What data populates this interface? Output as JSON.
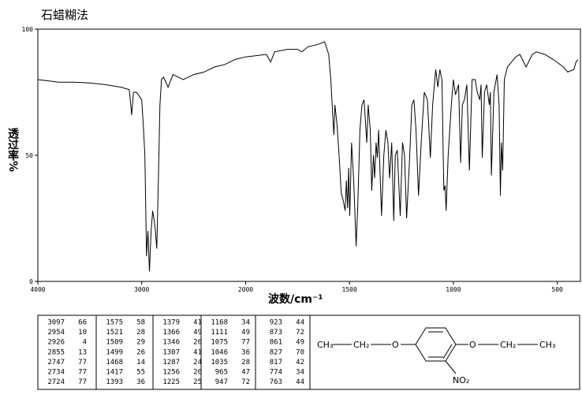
{
  "chart_data": {
    "type": "line",
    "title": "石蜡糊法",
    "xlabel": "波数/cm⁻¹",
    "ylabel": "透过率%",
    "xlim": [
      4000,
      400
    ],
    "ylim": [
      0,
      100
    ],
    "xticks": [
      4000,
      3000,
      2000,
      1500,
      1000,
      500
    ],
    "yticks": [
      0,
      50,
      100
    ],
    "color": "#000000",
    "x": [
      4000,
      3900,
      3800,
      3650,
      3500,
      3350,
      3200,
      3120,
      3097,
      3080,
      3050,
      3000,
      2985,
      2970,
      2954,
      2940,
      2926,
      2910,
      2895,
      2880,
      2868,
      2855,
      2840,
      2825,
      2810,
      2790,
      2747,
      2700,
      2600,
      2500,
      2400,
      2300,
      2200,
      2100,
      2000,
      1900,
      1880,
      1860,
      1800,
      1750,
      1730,
      1700,
      1650,
      1620,
      1600,
      1590,
      1580,
      1575,
      1570,
      1560,
      1550,
      1540,
      1530,
      1521,
      1515,
      1509,
      1504,
      1499,
      1490,
      1480,
      1468,
      1460,
      1450,
      1440,
      1430,
      1417,
      1410,
      1400,
      1393,
      1385,
      1379,
      1372,
      1366,
      1360,
      1346,
      1335,
      1325,
      1315,
      1307,
      1297,
      1287,
      1280,
      1270,
      1256,
      1245,
      1235,
      1225,
      1210,
      1200,
      1190,
      1180,
      1168,
      1155,
      1140,
      1125,
      1111,
      1100,
      1085,
      1075,
      1065,
      1055,
      1046,
      1040,
      1035,
      1025,
      1010,
      1000,
      990,
      975,
      965,
      957,
      947,
      935,
      923,
      910,
      895,
      885,
      873,
      867,
      861,
      850,
      840,
      827,
      822,
      817,
      805,
      790,
      780,
      774,
      769,
      763,
      755,
      740,
      700,
      680,
      650,
      620,
      600,
      560,
      520,
      470,
      450,
      420,
      410,
      400
    ],
    "values": [
      80,
      79.5,
      79,
      79,
      78.7,
      78,
      77,
      76,
      66,
      75,
      75,
      72,
      62,
      50,
      10,
      20,
      4,
      20,
      28,
      24,
      20,
      13,
      40,
      70,
      80,
      81,
      77,
      82,
      80,
      82,
      83,
      85,
      86,
      88,
      89,
      90,
      87,
      91,
      92,
      92,
      91,
      93,
      94,
      95,
      90,
      80,
      65,
      58,
      70,
      62,
      50,
      35,
      32,
      28,
      40,
      29,
      45,
      26,
      55,
      40,
      14,
      30,
      60,
      70,
      72,
      55,
      70,
      60,
      36,
      50,
      41,
      55,
      49,
      60,
      26,
      50,
      60,
      55,
      41,
      55,
      24,
      50,
      52,
      26,
      55,
      50,
      25,
      50,
      70,
      72,
      60,
      34,
      55,
      75,
      72,
      49,
      70,
      84,
      77,
      84,
      80,
      36,
      38,
      28,
      50,
      70,
      80,
      74,
      78,
      47,
      70,
      72,
      78,
      44,
      80,
      80,
      75,
      72,
      78,
      49,
      75,
      78,
      70,
      75,
      42,
      75,
      82,
      70,
      34,
      55,
      44,
      80,
      85,
      89,
      90,
      85,
      90,
      91,
      90,
      88,
      85,
      83,
      84,
      87,
      88
    ]
  },
  "peak_table": [
    [
      [
        3097,
        66
      ],
      [
        2954,
        10
      ],
      [
        2926,
        4
      ],
      [
        2855,
        13
      ],
      [
        2747,
        77
      ],
      [
        2734,
        77
      ],
      [
        2724,
        77
      ]
    ],
    [
      [
        1575,
        58
      ],
      [
        1521,
        28
      ],
      [
        1509,
        29
      ],
      [
        1499,
        26
      ],
      [
        1468,
        14
      ],
      [
        1417,
        55
      ],
      [
        1393,
        36
      ]
    ],
    [
      [
        1379,
        41
      ],
      [
        1366,
        49
      ],
      [
        1346,
        26
      ],
      [
        1307,
        41
      ],
      [
        1287,
        24
      ],
      [
        1256,
        26
      ],
      [
        1225,
        25
      ]
    ],
    [
      [
        1168,
        34
      ],
      [
        1111,
        49
      ],
      [
        1075,
        77
      ],
      [
        1046,
        36
      ],
      [
        1035,
        28
      ],
      [
        965,
        47
      ],
      [
        947,
        72
      ]
    ],
    [
      [
        923,
        44
      ],
      [
        873,
        72
      ],
      [
        861,
        49
      ],
      [
        827,
        70
      ],
      [
        817,
        42
      ],
      [
        774,
        34
      ],
      [
        763,
        44
      ]
    ]
  ],
  "structure": {
    "left_ethyl": [
      "CH₃",
      "CH₂",
      "O"
    ],
    "right_ethyl": [
      "O",
      "CH₂",
      "CH₃"
    ],
    "substituent": "NO₂"
  }
}
